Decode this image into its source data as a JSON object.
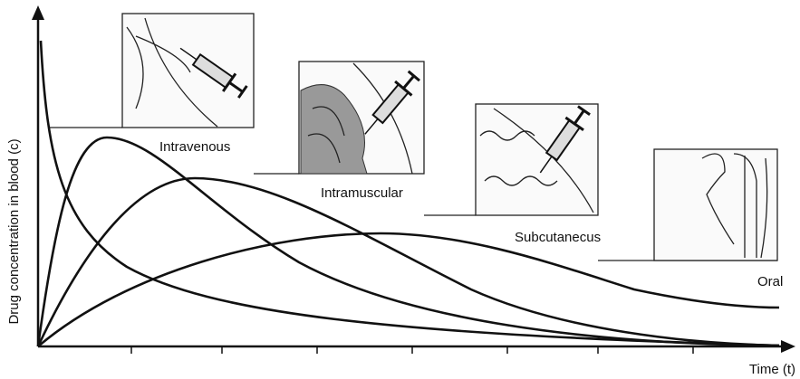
{
  "axes": {
    "y_label": "Drug concentration in blood (c)",
    "x_label": "Time (t)"
  },
  "routes": [
    {
      "label": "Intravenous"
    },
    {
      "label": "Intramuscular"
    },
    {
      "label": "Subcutanecus"
    },
    {
      "label": "Oral"
    }
  ]
}
